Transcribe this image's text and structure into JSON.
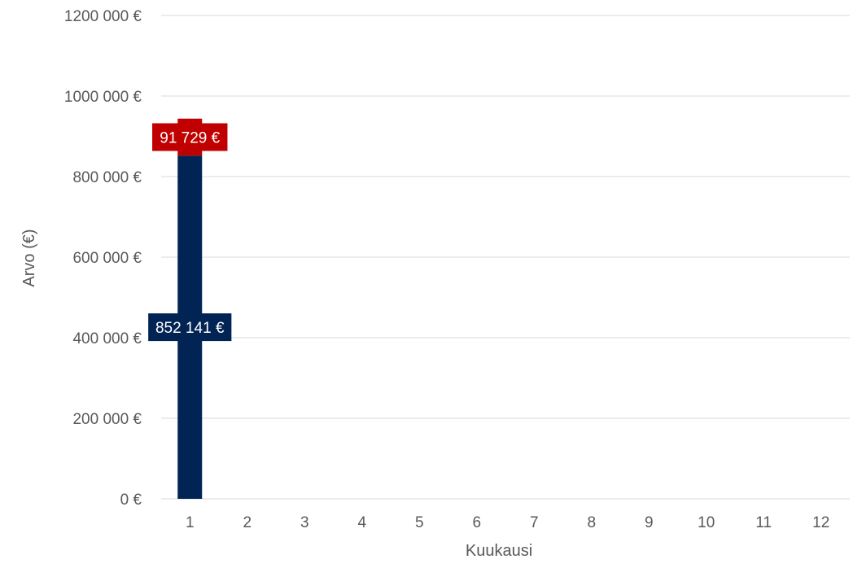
{
  "chart_data": {
    "type": "bar",
    "stacked": true,
    "categories": [
      "1",
      "2",
      "3",
      "4",
      "5",
      "6",
      "7",
      "8",
      "9",
      "10",
      "11",
      "12"
    ],
    "series": [
      {
        "values": [
          852141,
          null,
          null,
          null,
          null,
          null,
          null,
          null,
          null,
          null,
          null,
          null
        ],
        "data_labels": [
          "852 141 €",
          "",
          "",
          "",
          "",
          "",
          "",
          "",
          "",
          "",
          "",
          ""
        ],
        "color": "#022454"
      },
      {
        "values": [
          91729,
          null,
          null,
          null,
          null,
          null,
          null,
          null,
          null,
          null,
          null,
          null
        ],
        "data_labels": [
          "91 729 €",
          "",
          "",
          "",
          "",
          "",
          "",
          "",
          "",
          "",
          "",
          ""
        ],
        "color": "#c00000"
      }
    ],
    "xlabel": "Kuukausi",
    "ylabel": "Arvo (€)",
    "ylim": [
      0,
      1200000
    ],
    "yticks": [
      0,
      200000,
      400000,
      600000,
      800000,
      1000000,
      1200000
    ],
    "ytick_labels": [
      "0 €",
      "200 000 €",
      "400 000 €",
      "600 000 €",
      "800 000 €",
      "1000 000 €",
      "1200 000 €"
    ],
    "grid": true,
    "colors": {
      "grid": "#d9d9d9",
      "text": "#595959",
      "label_text": "#ffffff"
    }
  }
}
